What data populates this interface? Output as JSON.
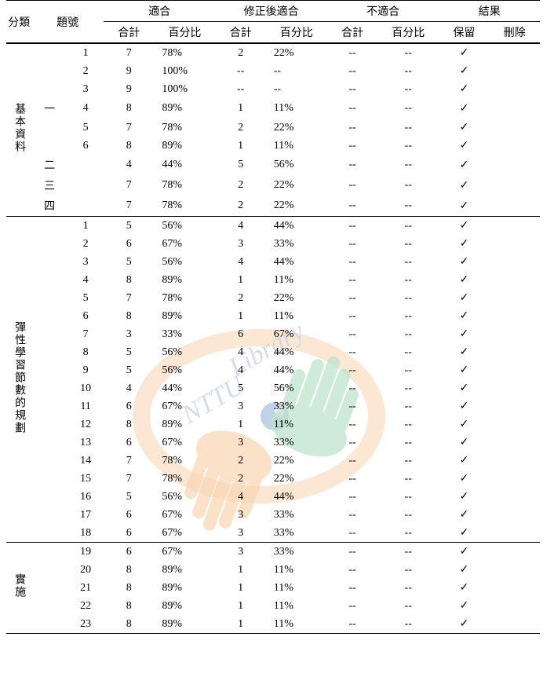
{
  "header": {
    "cat": "分類",
    "num": "題號",
    "g1": "適合",
    "g2": "修正後適合",
    "g3": "不適合",
    "g4": "結果",
    "count": "合計",
    "pct": "百分比",
    "keep": "保留",
    "del": "刪除"
  },
  "sections": [
    {
      "label": "基本資料",
      "rows": [
        {
          "sub": "",
          "n": "1",
          "c1": "7",
          "p1": "78%",
          "c2": "2",
          "p2": "22%",
          "c3": "--",
          "p3": "--",
          "keep": true
        },
        {
          "sub": "",
          "n": "2",
          "c1": "9",
          "p1": "100%",
          "c2": "--",
          "p2": "--",
          "c3": "--",
          "p3": "--",
          "keep": true
        },
        {
          "sub": "",
          "n": "3",
          "c1": "9",
          "p1": "100%",
          "c2": "--",
          "p2": "--",
          "c3": "--",
          "p3": "--",
          "keep": true
        },
        {
          "sub": "一",
          "n": "4",
          "c1": "8",
          "p1": "89%",
          "c2": "1",
          "p2": "11%",
          "c3": "--",
          "p3": "--",
          "keep": true
        },
        {
          "sub": "",
          "n": "5",
          "c1": "7",
          "p1": "78%",
          "c2": "2",
          "p2": "22%",
          "c3": "--",
          "p3": "--",
          "keep": true
        },
        {
          "sub": "",
          "n": "6",
          "c1": "8",
          "p1": "89%",
          "c2": "1",
          "p2": "11%",
          "c3": "--",
          "p3": "--",
          "keep": true
        },
        {
          "sub": "二",
          "n": "",
          "c1": "4",
          "p1": "44%",
          "c2": "5",
          "p2": "56%",
          "c3": "--",
          "p3": "--",
          "keep": true
        },
        {
          "sub": "三",
          "n": "",
          "c1": "7",
          "p1": "78%",
          "c2": "2",
          "p2": "22%",
          "c3": "--",
          "p3": "--",
          "keep": true
        },
        {
          "sub": "四",
          "n": "",
          "c1": "7",
          "p1": "78%",
          "c2": "2",
          "p2": "22%",
          "c3": "--",
          "p3": "--",
          "keep": true
        }
      ]
    },
    {
      "label": "彈性學習節數的規劃",
      "rows": [
        {
          "sub": "",
          "n": "1",
          "c1": "5",
          "p1": "56%",
          "c2": "4",
          "p2": "44%",
          "c3": "--",
          "p3": "--",
          "keep": true
        },
        {
          "sub": "",
          "n": "2",
          "c1": "6",
          "p1": "67%",
          "c2": "3",
          "p2": "33%",
          "c3": "--",
          "p3": "--",
          "keep": true
        },
        {
          "sub": "",
          "n": "3",
          "c1": "5",
          "p1": "56%",
          "c2": "4",
          "p2": "44%",
          "c3": "--",
          "p3": "--",
          "keep": true
        },
        {
          "sub": "",
          "n": "4",
          "c1": "8",
          "p1": "89%",
          "c2": "1",
          "p2": "11%",
          "c3": "--",
          "p3": "--",
          "keep": true
        },
        {
          "sub": "",
          "n": "5",
          "c1": "7",
          "p1": "78%",
          "c2": "2",
          "p2": "22%",
          "c3": "--",
          "p3": "--",
          "keep": true
        },
        {
          "sub": "",
          "n": "6",
          "c1": "8",
          "p1": "89%",
          "c2": "1",
          "p2": "11%",
          "c3": "--",
          "p3": "--",
          "keep": true
        },
        {
          "sub": "",
          "n": "7",
          "c1": "3",
          "p1": "33%",
          "c2": "6",
          "p2": "67%",
          "c3": "--",
          "p3": "--",
          "keep": true
        },
        {
          "sub": "",
          "n": "8",
          "c1": "5",
          "p1": "56%",
          "c2": "4",
          "p2": "44%",
          "c3": "--",
          "p3": "--",
          "keep": true
        },
        {
          "sub": "",
          "n": "9",
          "c1": "5",
          "p1": "56%",
          "c2": "4",
          "p2": "44%",
          "c3": "--",
          "p3": "--",
          "keep": true
        },
        {
          "sub": "",
          "n": "10",
          "c1": "4",
          "p1": "44%",
          "c2": "5",
          "p2": "56%",
          "c3": "--",
          "p3": "--",
          "keep": true
        },
        {
          "sub": "",
          "n": "11",
          "c1": "6",
          "p1": "67%",
          "c2": "3",
          "p2": "33%",
          "c3": "--",
          "p3": "--",
          "keep": true
        },
        {
          "sub": "",
          "n": "12",
          "c1": "8",
          "p1": "89%",
          "c2": "1",
          "p2": "11%",
          "c3": "--",
          "p3": "--",
          "keep": true
        },
        {
          "sub": "",
          "n": "13",
          "c1": "6",
          "p1": "67%",
          "c2": "3",
          "p2": "33%",
          "c3": "--",
          "p3": "--",
          "keep": true
        },
        {
          "sub": "",
          "n": "14",
          "c1": "7",
          "p1": "78%",
          "c2": "2",
          "p2": "22%",
          "c3": "--",
          "p3": "--",
          "keep": true
        },
        {
          "sub": "",
          "n": "15",
          "c1": "7",
          "p1": "78%",
          "c2": "2",
          "p2": "22%",
          "c3": "--",
          "p3": "--",
          "keep": true
        },
        {
          "sub": "",
          "n": "16",
          "c1": "5",
          "p1": "56%",
          "c2": "4",
          "p2": "44%",
          "c3": "--",
          "p3": "--",
          "keep": true
        },
        {
          "sub": "",
          "n": "17",
          "c1": "6",
          "p1": "67%",
          "c2": "3",
          "p2": "33%",
          "c3": "--",
          "p3": "--",
          "keep": true
        },
        {
          "sub": "",
          "n": "18",
          "c1": "6",
          "p1": "67%",
          "c2": "3",
          "p2": "33%",
          "c3": "--",
          "p3": "--",
          "keep": true
        }
      ]
    },
    {
      "label": "實施",
      "rows": [
        {
          "sub": "",
          "n": "19",
          "c1": "6",
          "p1": "67%",
          "c2": "3",
          "p2": "33%",
          "c3": "--",
          "p3": "--",
          "keep": true
        },
        {
          "sub": "",
          "n": "20",
          "c1": "8",
          "p1": "89%",
          "c2": "1",
          "p2": "11%",
          "c3": "--",
          "p3": "--",
          "keep": true
        },
        {
          "sub": "",
          "n": "21",
          "c1": "8",
          "p1": "89%",
          "c2": "1",
          "p2": "11%",
          "c3": "--",
          "p3": "--",
          "keep": true
        },
        {
          "sub": "",
          "n": "22",
          "c1": "8",
          "p1": "89%",
          "c2": "1",
          "p2": "11%",
          "c3": "--",
          "p3": "--",
          "keep": true
        },
        {
          "sub": "",
          "n": "23",
          "c1": "8",
          "p1": "89%",
          "c2": "1",
          "p2": "11%",
          "c3": "--",
          "p3": "--",
          "keep": true
        }
      ]
    }
  ],
  "colors": {
    "text": "#000000",
    "bg": "#ffffff",
    "rule": "#000000"
  }
}
